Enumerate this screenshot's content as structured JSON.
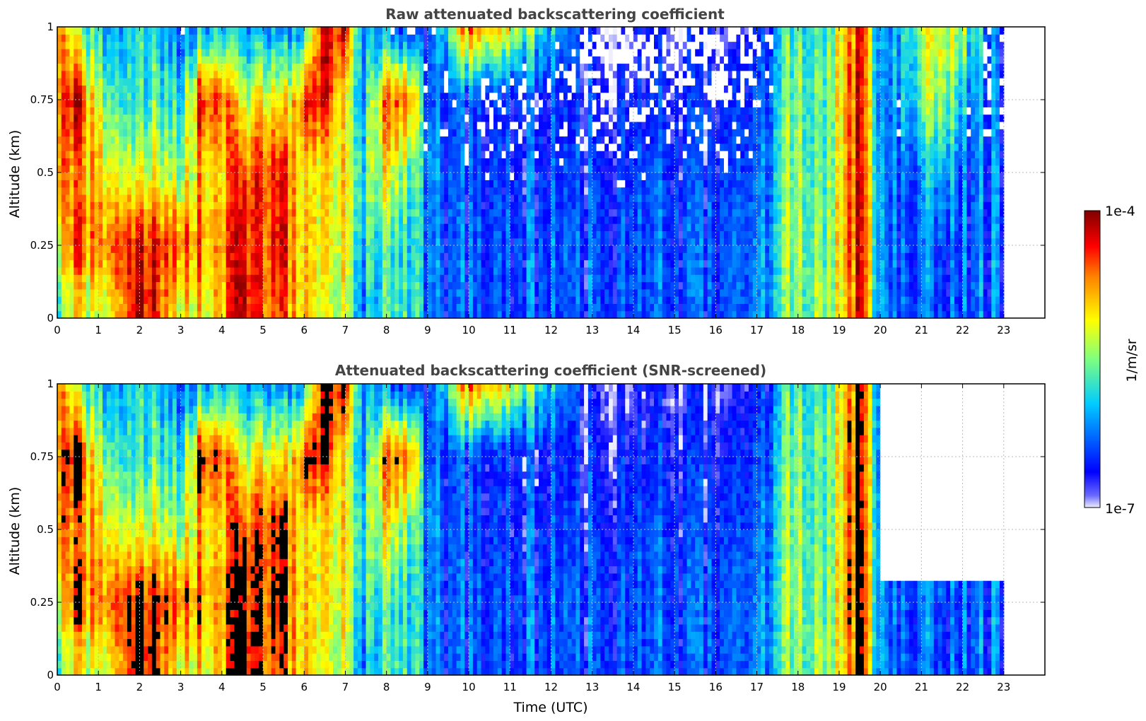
{
  "chart_data": [
    {
      "type": "heatmap",
      "title": "Raw attenuated backscattering coefficient",
      "xlabel": "",
      "ylabel": "Altitude (km)",
      "xlim": [
        0,
        24
      ],
      "ylim": [
        0,
        1
      ],
      "x_ticks": [
        "0",
        "1",
        "2",
        "3",
        "4",
        "5",
        "6",
        "7",
        "8",
        "9",
        "10",
        "11",
        "12",
        "13",
        "14",
        "15",
        "16",
        "17",
        "18",
        "19",
        "20",
        "21",
        "22",
        "23"
      ],
      "y_ticks": [
        "0",
        "0.25",
        "0.5",
        "0.75",
        "1"
      ],
      "data_end_hour": 23,
      "grid": true,
      "value_scale": "log",
      "approx_log10_field": {
        "time_hours": [
          0,
          0.5,
          1,
          1.5,
          2,
          2.5,
          3,
          3.5,
          4,
          4.5,
          5,
          5.5,
          6,
          6.5,
          7,
          7.5,
          8,
          8.5,
          9,
          10,
          11,
          12,
          13,
          14,
          15,
          16,
          17,
          17.9,
          18.5,
          19,
          19.5,
          20,
          21,
          21.5,
          22,
          22.9
        ],
        "altitude_km": [
          0.05,
          0.25,
          0.5,
          0.75,
          1.0
        ],
        "log10_values": [
          [
            -5.6,
            -5.1,
            -4.6,
            -4.6,
            -4.6
          ],
          [
            -5.2,
            -4.6,
            -4.9,
            -4.3,
            -5.6
          ],
          [
            -5.4,
            -4.8,
            -5.0,
            -5.4,
            -6.0
          ],
          [
            -4.7,
            -4.3,
            -5.1,
            -5.6,
            -6.0
          ],
          [
            -4.2,
            -4.4,
            -5.3,
            -5.8,
            -5.8
          ],
          [
            -4.6,
            -4.4,
            -5.3,
            -5.7,
            -6.0
          ],
          [
            -5.0,
            -4.5,
            -5.3,
            -5.8,
            -6.2
          ],
          [
            -5.0,
            -4.7,
            -4.9,
            -4.3,
            -6.0
          ],
          [
            -4.9,
            -4.8,
            -5.0,
            -4.5,
            -6.0
          ],
          [
            -4.2,
            -4.3,
            -4.5,
            -5.3,
            -6.2
          ],
          [
            -4.5,
            -4.5,
            -4.4,
            -5.0,
            -6.0
          ],
          [
            -4.6,
            -4.4,
            -4.5,
            -5.2,
            -6.3
          ],
          [
            -5.0,
            -5.0,
            -5.1,
            -4.5,
            -6.0
          ],
          [
            -5.4,
            -5.2,
            -5.2,
            -4.4,
            -4.3
          ],
          [
            -5.1,
            -5.0,
            -4.9,
            -5.1,
            -4.2
          ],
          [
            -6.2,
            -6.0,
            -5.8,
            -6.0,
            -6.3
          ],
          [
            -5.7,
            -5.6,
            -5.0,
            -4.5,
            -6.2
          ],
          [
            -5.6,
            -5.7,
            -5.4,
            -4.4,
            -6.5
          ],
          [
            -6.4,
            -6.4,
            -6.3,
            -6.5,
            -6.7
          ],
          [
            -6.4,
            -6.4,
            -6.5,
            -6.5,
            -4.6
          ],
          [
            -6.4,
            -6.4,
            -6.5,
            -6.6,
            -5.2
          ],
          [
            -6.4,
            -6.4,
            -6.5,
            -6.6,
            -6.0
          ],
          [
            -6.4,
            -6.4,
            -6.5,
            -6.6,
            -6.8
          ],
          [
            -6.4,
            -6.4,
            -6.5,
            -6.6,
            -6.8
          ],
          [
            -6.4,
            -6.4,
            -6.5,
            -6.6,
            -6.8
          ],
          [
            -6.4,
            -6.4,
            -6.5,
            -6.6,
            -6.8
          ],
          [
            -6.4,
            -6.4,
            -6.5,
            -6.6,
            -6.8
          ],
          [
            -5.5,
            -5.4,
            -5.4,
            -5.5,
            -5.6
          ],
          [
            -5.4,
            -5.5,
            -5.6,
            -5.6,
            -5.7
          ],
          [
            -5.3,
            -5.2,
            -5.2,
            -5.2,
            -5.3
          ],
          [
            -4.4,
            -4.3,
            -4.3,
            -4.3,
            -4.4
          ],
          [
            -6.3,
            -6.3,
            -6.3,
            -6.4,
            -6.3
          ],
          [
            -6.3,
            -6.3,
            -6.2,
            -5.6,
            -5.4
          ],
          [
            -6.3,
            -6.3,
            -5.8,
            -5.2,
            -5.0
          ],
          [
            -6.3,
            -6.3,
            -6.3,
            -5.9,
            -5.4
          ],
          [
            -6.3,
            -6.3,
            -6.3,
            -6.4,
            -6.5
          ]
        ]
      }
    },
    {
      "type": "heatmap",
      "title": "Attenuated backscattering coefficient (SNR-screened)",
      "xlabel": "Time (UTC)",
      "ylabel": "Altitude (km)",
      "xlim": [
        0,
        24
      ],
      "ylim": [
        0,
        1
      ],
      "x_ticks": [
        "0",
        "1",
        "2",
        "3",
        "4",
        "5",
        "6",
        "7",
        "8",
        "9",
        "10",
        "11",
        "12",
        "13",
        "14",
        "15",
        "16",
        "17",
        "18",
        "19",
        "20",
        "21",
        "22",
        "23"
      ],
      "y_ticks": [
        "0",
        "0.25",
        "0.5",
        "0.75",
        "1"
      ],
      "data_end_hour": 23,
      "grid": true,
      "value_scale": "log",
      "screened_out_regions": [
        {
          "time_hours": [
            20.0,
            21.0
          ],
          "altitude_km_above": 0.33
        },
        {
          "time_hours": [
            21.0,
            23.0
          ],
          "altitude_km_above": 0.32
        }
      ],
      "approx_log10_field": "same as raw panel below the screened-out regions"
    }
  ],
  "colorbar": {
    "label": "1/m/sr",
    "max_label": "1e-4",
    "min_label": "1e-7",
    "colormap": "jet",
    "colors": [
      "#e6e6fa",
      "#0000ff",
      "#00c8ff",
      "#7fff7f",
      "#ffff00",
      "#ff7f00",
      "#ff0000",
      "#800000"
    ]
  }
}
